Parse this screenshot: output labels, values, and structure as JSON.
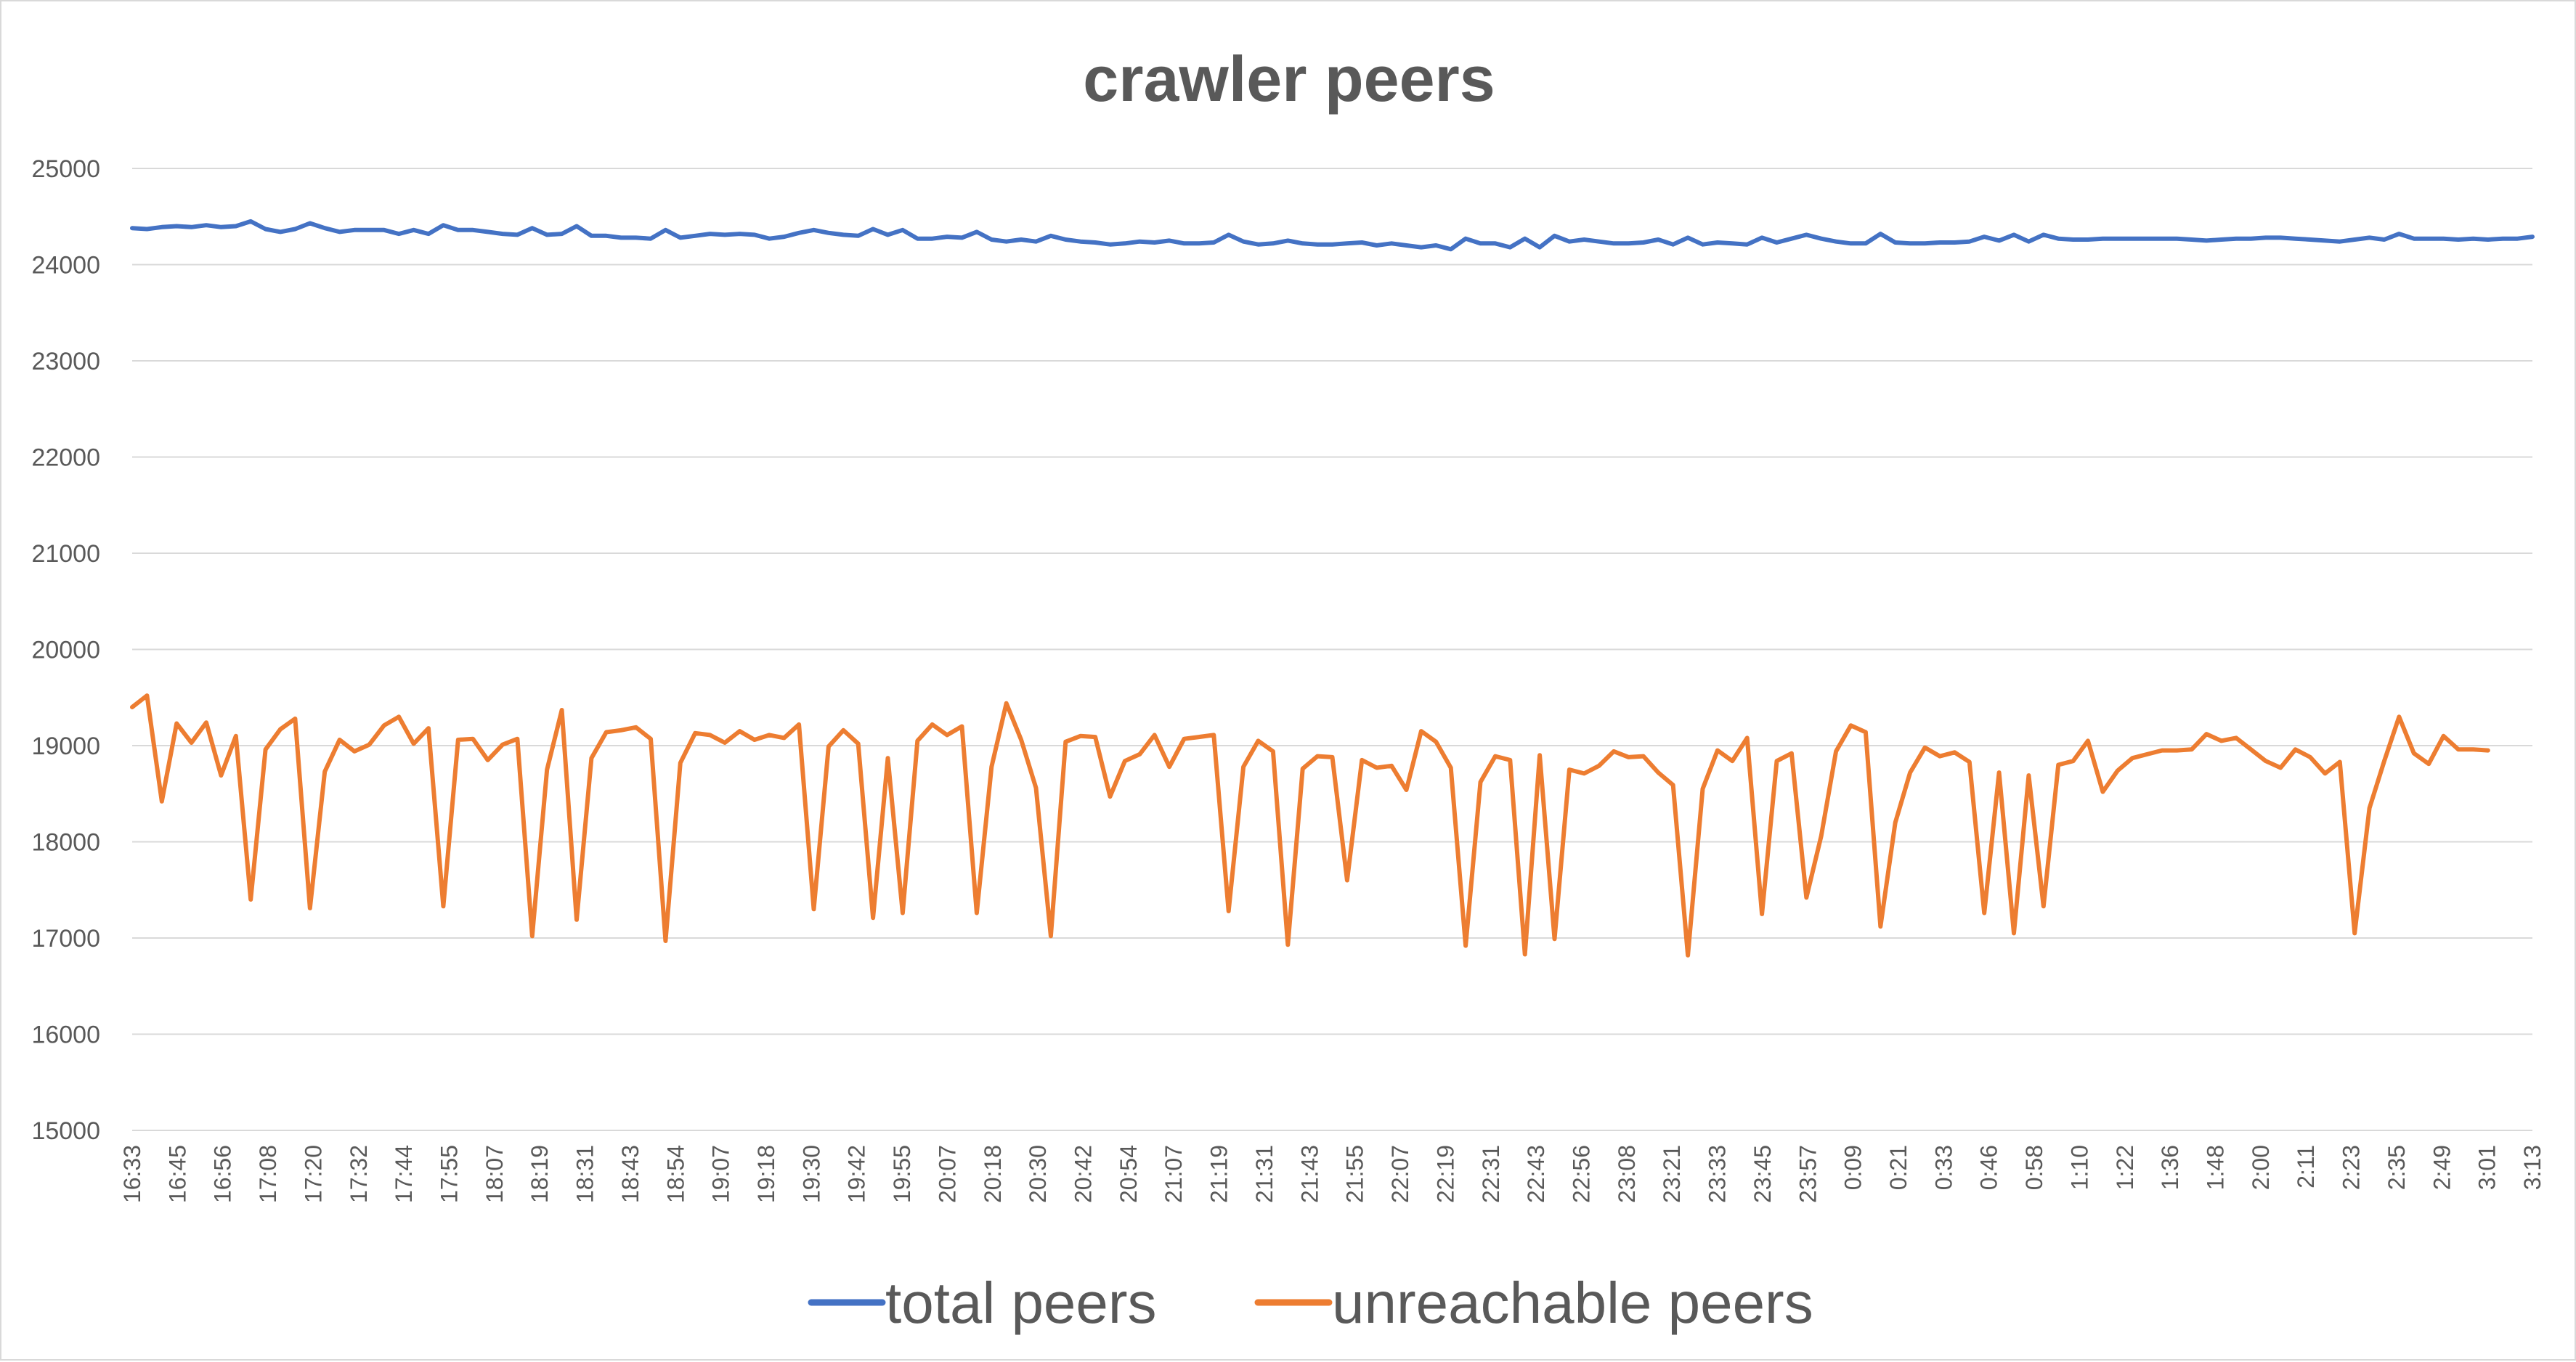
{
  "chart_data": {
    "type": "line",
    "title": "crawler peers",
    "xlabel": "",
    "ylabel": "",
    "ylim": [
      15000,
      25000
    ],
    "yticks": [
      15000,
      16000,
      17000,
      18000,
      19000,
      20000,
      21000,
      22000,
      23000,
      24000,
      25000
    ],
    "grid": true,
    "legend_position": "bottom",
    "xtick_labels": [
      "16:33",
      "16:45",
      "16:56",
      "17:08",
      "17:20",
      "17:32",
      "17:44",
      "17:55",
      "18:07",
      "18:19",
      "18:31",
      "18:43",
      "18:54",
      "19:07",
      "19:18",
      "19:30",
      "19:42",
      "19:55",
      "20:07",
      "20:18",
      "20:30",
      "20:42",
      "20:54",
      "21:07",
      "21:19",
      "21:31",
      "21:43",
      "21:55",
      "22:07",
      "22:19",
      "22:31",
      "22:43",
      "22:56",
      "23:08",
      "23:21",
      "23:33",
      "23:45",
      "23:57",
      "0:09",
      "0:21",
      "0:33",
      "0:46",
      "0:58",
      "1:10",
      "1:22",
      "1:36",
      "1:48",
      "2:00",
      "2:11",
      "2:23",
      "2:35",
      "2:49",
      "3:01",
      "3:13"
    ],
    "series": [
      {
        "name": "total peers",
        "color": "#4472C4",
        "values": [
          24380,
          24370,
          24390,
          24400,
          24390,
          24410,
          24390,
          24400,
          24450,
          24370,
          24340,
          24370,
          24430,
          24380,
          24340,
          24360,
          24360,
          24360,
          24320,
          24360,
          24320,
          24410,
          24360,
          24360,
          24340,
          24320,
          24310,
          24380,
          24310,
          24320,
          24400,
          24300,
          24300,
          24280,
          24280,
          24270,
          24360,
          24280,
          24300,
          24320,
          24310,
          24320,
          24310,
          24270,
          24290,
          24330,
          24360,
          24330,
          24310,
          24300,
          24370,
          24310,
          24360,
          24270,
          24270,
          24290,
          24280,
          24340,
          24260,
          24240,
          24260,
          24240,
          24300,
          24260,
          24240,
          24230,
          24210,
          24220,
          24240,
          24230,
          24250,
          24220,
          24220,
          24230,
          24310,
          24240,
          24210,
          24220,
          24250,
          24220,
          24210,
          24210,
          24220,
          24230,
          24200,
          24220,
          24200,
          24180,
          24200,
          24160,
          24270,
          24220,
          24220,
          24180,
          24270,
          24180,
          24300,
          24240,
          24260,
          24240,
          24220,
          24220,
          24230,
          24260,
          24210,
          24280,
          24210,
          24230,
          24220,
          24210,
          24280,
          24230,
          24270,
          24310,
          24270,
          24240,
          24220,
          24220,
          24320,
          24230,
          24220,
          24220,
          24230,
          24230,
          24240,
          24290,
          24250,
          24310,
          24240,
          24310,
          24270,
          24260,
          24260,
          24270,
          24270,
          24270,
          24270,
          24270,
          24270,
          24260,
          24250,
          24260,
          24270,
          24270,
          24280,
          24280,
          24270,
          24260,
          24250,
          24240,
          24260,
          24280,
          24260,
          24320,
          24270,
          24270,
          24270,
          24260,
          24270,
          24260,
          24270,
          24270,
          24290
        ]
      },
      {
        "name": "unreachable peers",
        "color": "#ED7D31",
        "values": [
          19400,
          19520,
          18420,
          19230,
          19030,
          19240,
          18690,
          19100,
          17400,
          18960,
          19170,
          19280,
          17310,
          18730,
          19060,
          18940,
          19010,
          19210,
          19300,
          19020,
          19180,
          17330,
          19060,
          19070,
          18850,
          19010,
          19070,
          17020,
          18750,
          19370,
          17190,
          18870,
          19140,
          19160,
          19190,
          19070,
          16970,
          18820,
          19130,
          19110,
          19030,
          19150,
          19060,
          19110,
          19080,
          19220,
          17300,
          18990,
          19160,
          19020,
          17210,
          18870,
          17260,
          19050,
          19220,
          19110,
          19200,
          17260,
          18780,
          19440,
          19060,
          18560,
          17020,
          19040,
          19100,
          19090,
          18470,
          18840,
          18910,
          19110,
          18780,
          19070,
          19090,
          19110,
          17280,
          18780,
          19050,
          18940,
          16930,
          18760,
          18890,
          18880,
          17600,
          18850,
          18770,
          18790,
          18540,
          19150,
          19040,
          18770,
          16920,
          18620,
          18890,
          18850,
          16830,
          18900,
          16990,
          18750,
          18710,
          18790,
          18940,
          18880,
          18890,
          18720,
          18590,
          16820,
          18550,
          18950,
          18840,
          19080,
          17250,
          18840,
          18920,
          17420,
          18060,
          18940,
          19210,
          19140,
          17120,
          18200,
          18720,
          18980,
          18890,
          18930,
          18830,
          17260,
          18720,
          17050,
          18690,
          17330,
          18800,
          18840,
          19050,
          18520,
          18740,
          18870,
          18910,
          18950,
          18950,
          18960,
          19120,
          19050,
          19080,
          18960,
          18840,
          18770,
          18960,
          18880,
          18710,
          18830,
          17050,
          18350,
          18840,
          19300,
          18920,
          18810,
          19100,
          18960,
          18960,
          18950
        ]
      }
    ]
  }
}
